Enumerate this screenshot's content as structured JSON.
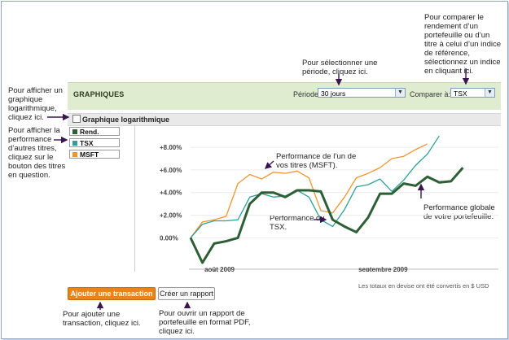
{
  "panel": {
    "title": "GRAPHIQUES",
    "period_label": "Période",
    "period_value": "30 jours",
    "compare_label": "Comparer à:",
    "compare_value": "TSX",
    "log_label": "Graphique logarithmique"
  },
  "legend": [
    {
      "name": "Rend. global",
      "color": "#2e5e34"
    },
    {
      "name": "TSX",
      "color": "#2aa198"
    },
    {
      "name": "MSFT",
      "color": "#f0952e"
    }
  ],
  "buttons": {
    "add": "Ajouter une transaction",
    "report": "Créer un rapport"
  },
  "footnote": "Les totaux en devise ont été convertis en $ USD",
  "annotations": {
    "compare": "Pour comparer le rendement d’un portefeuille ou d’un titre à celui d’un indice de référence, sélectionnez un indice en cliquant ici.",
    "period": "Pour sélectionner une période, cliquez ici.",
    "log": "Pour afficher un graphique logarithmique, cliquez ici.",
    "legend": "Pour afficher la performance d’autres titres, cliquez sur le bouton des titres en question.",
    "msft": "Performance de l’un de vos titres (MSFT).",
    "tsx": "Performance du TSX.",
    "global": "Performance globale de votre portefeuille.",
    "add": "Pour ajouter une transaction, cliquez ici.",
    "report": "Pour ouvrir un rapport de portefeuille en format PDF, cliquez ici."
  },
  "chart_data": {
    "type": "line",
    "y_ticks": [
      "+8.00%",
      "+6.00%",
      "+4.00%",
      "+2.00%",
      "0.00%"
    ],
    "y_values": [
      8,
      6,
      4,
      2,
      0
    ],
    "ylim": [
      -2.2,
      9.3
    ],
    "x_labels": [
      "août 2009",
      "septembre 2009"
    ],
    "x_label_positions": [
      2,
      15
    ],
    "xlim": [
      0,
      26
    ],
    "series": [
      {
        "name": "Rend. global",
        "color": "#2e5e34",
        "values": [
          0.0,
          -2.2,
          -0.5,
          -0.3,
          0.0,
          3.0,
          4.0,
          4.0,
          3.6,
          4.2,
          4.2,
          4.1,
          1.6,
          1.0,
          0.5,
          1.8,
          3.9,
          3.9,
          4.8,
          4.6,
          5.4,
          4.9,
          5.0,
          6.2
        ]
      },
      {
        "name": "TSX",
        "color": "#2aa198",
        "values": [
          0.0,
          1.2,
          1.5,
          1.5,
          1.6,
          3.6,
          3.9,
          3.6,
          3.7,
          4.2,
          3.6,
          1.6,
          1.0,
          2.5,
          4.5,
          4.7,
          5.2,
          4.1,
          5.1,
          6.4,
          7.4,
          9.0
        ]
      },
      {
        "name": "MSFT",
        "color": "#f0952e",
        "values": [
          0.0,
          1.4,
          1.6,
          1.9,
          4.8,
          5.6,
          5.2,
          5.8,
          5.7,
          5.9,
          5.3,
          2.4,
          2.2,
          3.6,
          5.3,
          5.7,
          6.2,
          7.0,
          7.2,
          7.8,
          8.3
        ]
      }
    ]
  }
}
